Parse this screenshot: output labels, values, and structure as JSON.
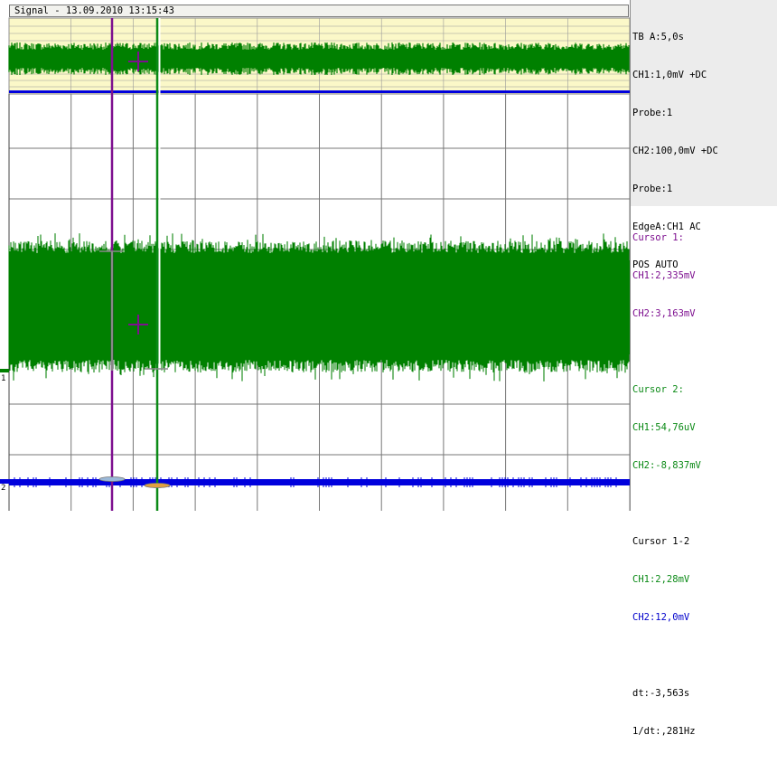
{
  "title": "Signal - 13.09.2010 13:15:43",
  "settings": {
    "timebase": "TB A:5,0s",
    "ch1": "CH1:1,0mV +DC",
    "ch1_probe": "Probe:1",
    "ch2": "CH2:100,0mV +DC",
    "ch2_probe": "Probe:1",
    "trigger": "EdgeA:CH1 AC",
    "position": "POS AUTO"
  },
  "cursor1": {
    "label": "Cursor 1:",
    "ch1": "CH1:2,335mV",
    "ch2": "CH2:3,163mV"
  },
  "cursor2": {
    "label": "Cursor 2:",
    "ch1": "CH1:54,76uV",
    "ch2": "CH2:-8,837mV"
  },
  "cursor_diff": {
    "label": "Cursor 1-2",
    "ch1": "CH1:2,28mV",
    "ch2": "CH2:12,0mV"
  },
  "dt": "dt:-3,563s",
  "inv_dt": "1/dt:,281Hz",
  "markers": {
    "ch1": "1",
    "ch2": "2"
  },
  "colors": {
    "ch1_trace": "#008000",
    "ch2_trace": "#0000dd",
    "cursor1": "#7d0f8f",
    "cursor2": "#0b8a16",
    "zoom_band": "#fbf8c8",
    "grid": "#777777",
    "diff_text": "#000000"
  }
}
